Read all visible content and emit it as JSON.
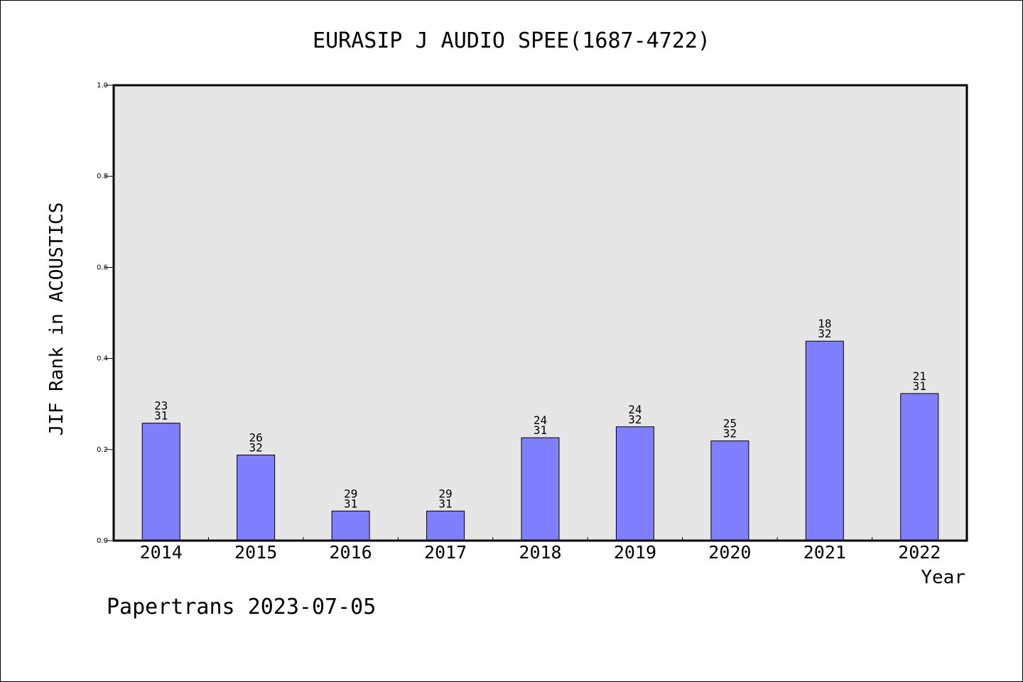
{
  "footer": {
    "text": "Papertrans 2023-07-05"
  },
  "colors": {
    "bar_fill": "#8080ff",
    "plot_background": "#e6e6e6",
    "frame": "#000000"
  },
  "chart_data": {
    "type": "bar",
    "title": "EURASIP J AUDIO SPEE(1687-4722)",
    "xlabel": "Year",
    "ylabel": "JIF Rank in ACOUSTICS",
    "ylim": [
      0,
      1.0
    ],
    "yticks": [
      "0.0",
      "0.2",
      "0.4",
      "0.6",
      "0.8",
      "1.0"
    ],
    "grid": false,
    "categories": [
      "2014",
      "2015",
      "2016",
      "2017",
      "2018",
      "2019",
      "2020",
      "2021",
      "2022"
    ],
    "values": [
      0.258,
      0.188,
      0.065,
      0.065,
      0.226,
      0.25,
      0.219,
      0.438,
      0.323
    ],
    "rank": [
      "23",
      "26",
      "29",
      "29",
      "24",
      "24",
      "25",
      "18",
      "21"
    ],
    "total": [
      "31",
      "32",
      "31",
      "31",
      "31",
      "32",
      "32",
      "32",
      "31"
    ]
  }
}
